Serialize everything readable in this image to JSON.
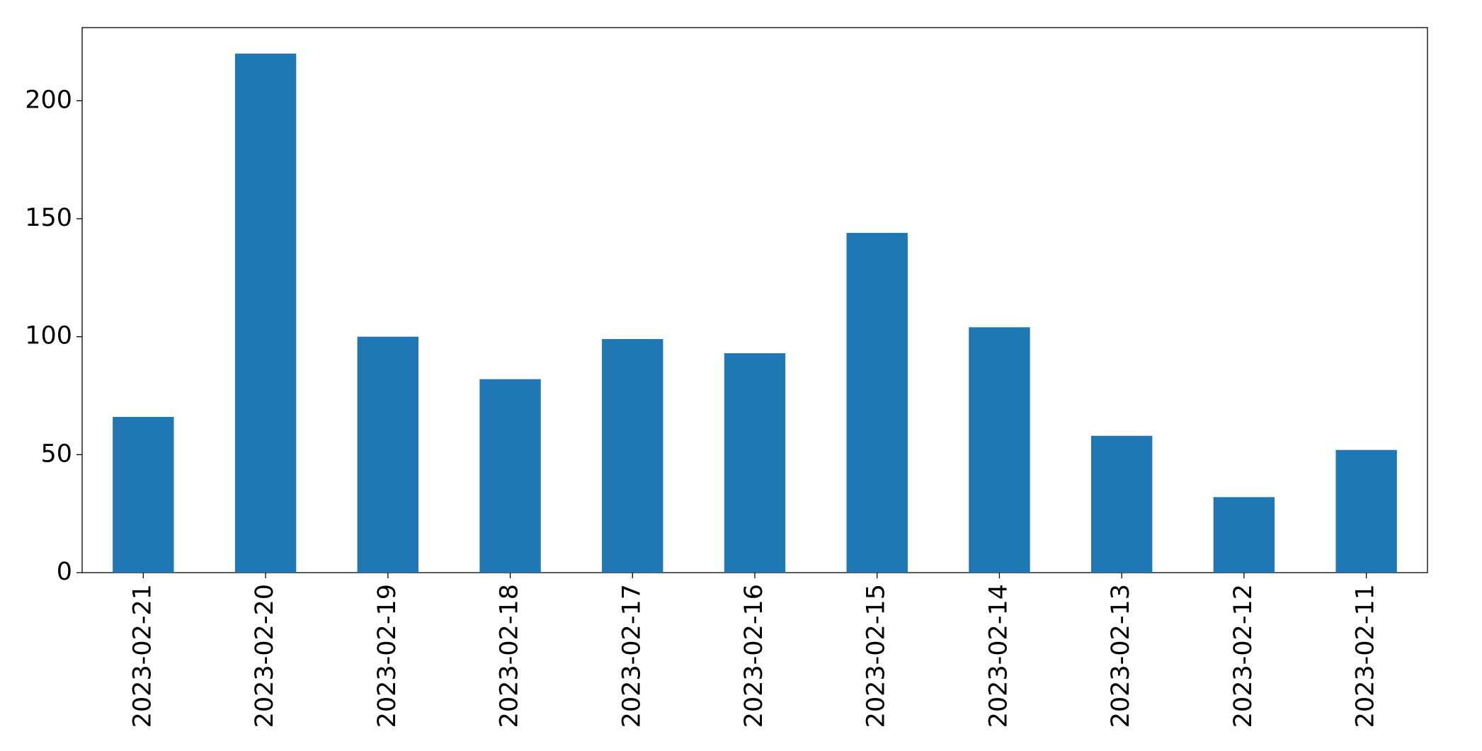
{
  "chart_data": {
    "type": "bar",
    "categories": [
      "2023-02-21",
      "2023-02-20",
      "2023-02-19",
      "2023-02-18",
      "2023-02-17",
      "2023-02-16",
      "2023-02-15",
      "2023-02-14",
      "2023-02-13",
      "2023-02-12",
      "2023-02-11"
    ],
    "values": [
      66,
      220,
      100,
      82,
      99,
      93,
      144,
      104,
      58,
      32,
      52
    ],
    "color": "#1f77b4",
    "ylim": [
      0,
      231
    ],
    "yticks": [
      0,
      50,
      100,
      150,
      200
    ],
    "grid": false
  }
}
